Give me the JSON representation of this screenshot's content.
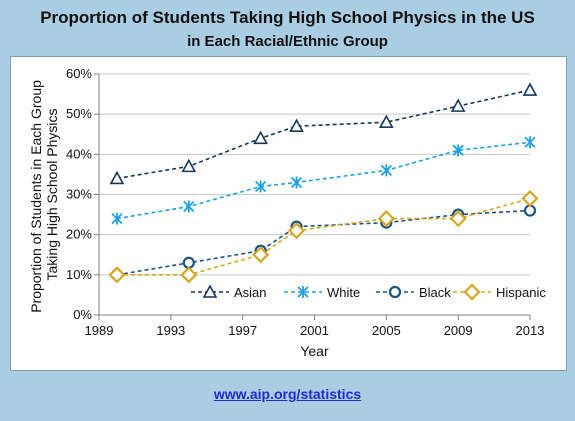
{
  "title_line1": "Proportion of Students Taking High School Physics in the US",
  "title_line2": "in Each Racial/Ethnic Group",
  "footer_link": "www.aip.org/statistics",
  "chart_data": {
    "type": "line",
    "xlabel": "Year",
    "ylabel_line1": "Proportion of Students in Each Group",
    "ylabel_line2": "Taking High School Physics",
    "xlim": [
      1989,
      2013
    ],
    "xticks": [
      1989,
      1993,
      1997,
      2001,
      2005,
      2009,
      2013
    ],
    "ylim": [
      0,
      60
    ],
    "yticks": [
      0,
      10,
      20,
      30,
      40,
      50,
      60
    ],
    "ytick_suffix": "%",
    "grid": "horizontal",
    "legend_position": "bottom-right",
    "series": [
      {
        "name": "Asian",
        "color": "#17375e",
        "marker": "triangle",
        "x": [
          1990,
          1994,
          1998,
          2000,
          2005,
          2009,
          2013
        ],
        "values": [
          34,
          37,
          44,
          47,
          48,
          52,
          56
        ]
      },
      {
        "name": "White",
        "color": "#1fa2e4",
        "marker": "asterisk",
        "x": [
          1990,
          1994,
          1998,
          2000,
          2005,
          2009,
          2013
        ],
        "values": [
          24,
          27,
          32,
          33,
          36,
          41,
          43
        ]
      },
      {
        "name": "Black",
        "color": "#1b5582",
        "marker": "circle",
        "x": [
          1990,
          1994,
          1998,
          2000,
          2005,
          2009,
          2013
        ],
        "values": [
          10,
          13,
          16,
          22,
          23,
          25,
          26
        ]
      },
      {
        "name": "Hispanic",
        "color": "#d9a520",
        "marker": "diamond",
        "x": [
          1990,
          1994,
          1998,
          2000,
          2005,
          2009,
          2013
        ],
        "values": [
          10,
          10,
          15,
          21,
          24,
          24,
          29
        ]
      }
    ]
  }
}
